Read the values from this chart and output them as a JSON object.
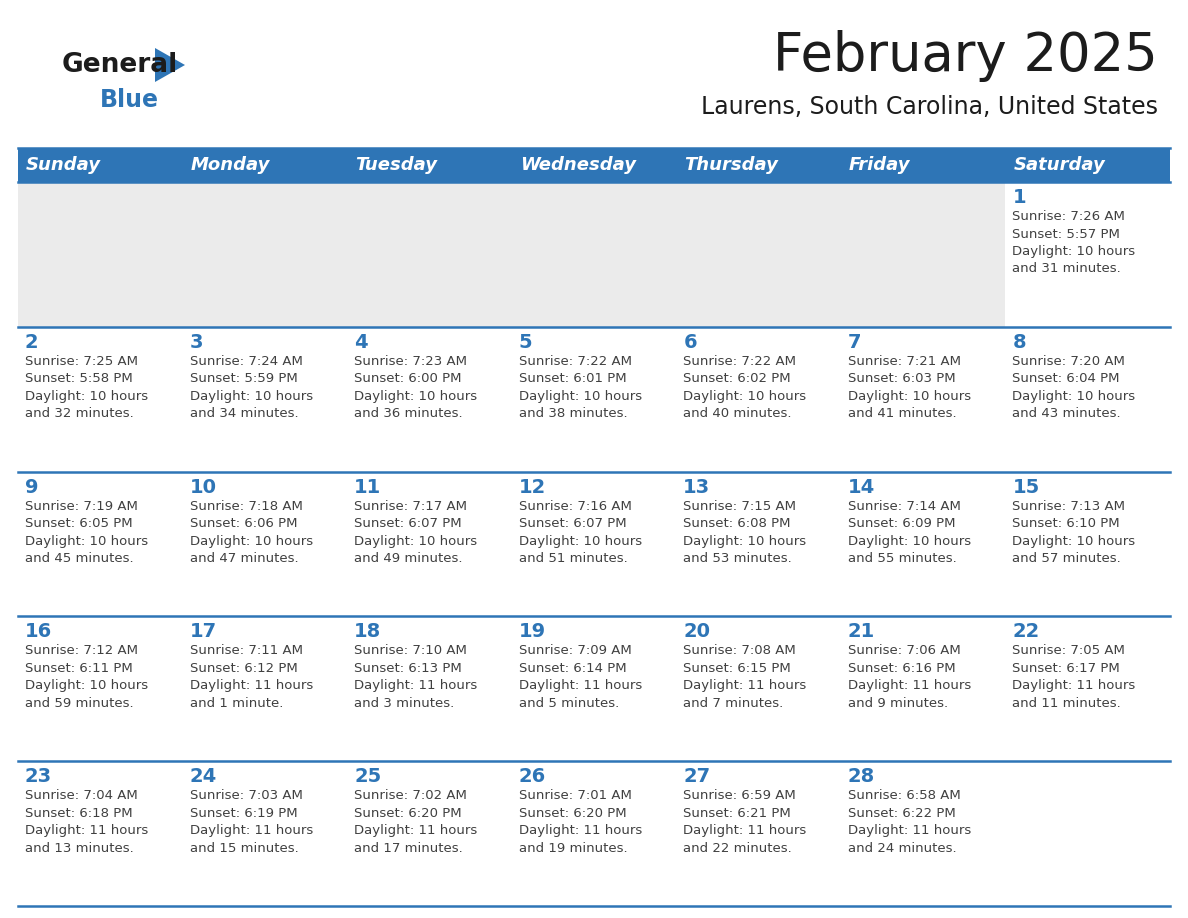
{
  "title": "February 2025",
  "subtitle": "Laurens, South Carolina, United States",
  "header_bg": "#2E75B6",
  "header_text_color": "#FFFFFF",
  "cell_bg_empty": "#EBEBEB",
  "cell_bg_filled": "#FFFFFF",
  "day_number_color": "#2E75B6",
  "text_color": "#404040",
  "border_color": "#2E75B6",
  "days_of_week": [
    "Sunday",
    "Monday",
    "Tuesday",
    "Wednesday",
    "Thursday",
    "Friday",
    "Saturday"
  ],
  "weeks": [
    [
      {
        "day": "",
        "sunrise": "",
        "sunset": "",
        "daylight": ""
      },
      {
        "day": "",
        "sunrise": "",
        "sunset": "",
        "daylight": ""
      },
      {
        "day": "",
        "sunrise": "",
        "sunset": "",
        "daylight": ""
      },
      {
        "day": "",
        "sunrise": "",
        "sunset": "",
        "daylight": ""
      },
      {
        "day": "",
        "sunrise": "",
        "sunset": "",
        "daylight": ""
      },
      {
        "day": "",
        "sunrise": "",
        "sunset": "",
        "daylight": ""
      },
      {
        "day": "1",
        "sunrise": "7:26 AM",
        "sunset": "5:57 PM",
        "daylight": "10 hours\nand 31 minutes."
      }
    ],
    [
      {
        "day": "2",
        "sunrise": "7:25 AM",
        "sunset": "5:58 PM",
        "daylight": "10 hours\nand 32 minutes."
      },
      {
        "day": "3",
        "sunrise": "7:24 AM",
        "sunset": "5:59 PM",
        "daylight": "10 hours\nand 34 minutes."
      },
      {
        "day": "4",
        "sunrise": "7:23 AM",
        "sunset": "6:00 PM",
        "daylight": "10 hours\nand 36 minutes."
      },
      {
        "day": "5",
        "sunrise": "7:22 AM",
        "sunset": "6:01 PM",
        "daylight": "10 hours\nand 38 minutes."
      },
      {
        "day": "6",
        "sunrise": "7:22 AM",
        "sunset": "6:02 PM",
        "daylight": "10 hours\nand 40 minutes."
      },
      {
        "day": "7",
        "sunrise": "7:21 AM",
        "sunset": "6:03 PM",
        "daylight": "10 hours\nand 41 minutes."
      },
      {
        "day": "8",
        "sunrise": "7:20 AM",
        "sunset": "6:04 PM",
        "daylight": "10 hours\nand 43 minutes."
      }
    ],
    [
      {
        "day": "9",
        "sunrise": "7:19 AM",
        "sunset": "6:05 PM",
        "daylight": "10 hours\nand 45 minutes."
      },
      {
        "day": "10",
        "sunrise": "7:18 AM",
        "sunset": "6:06 PM",
        "daylight": "10 hours\nand 47 minutes."
      },
      {
        "day": "11",
        "sunrise": "7:17 AM",
        "sunset": "6:07 PM",
        "daylight": "10 hours\nand 49 minutes."
      },
      {
        "day": "12",
        "sunrise": "7:16 AM",
        "sunset": "6:07 PM",
        "daylight": "10 hours\nand 51 minutes."
      },
      {
        "day": "13",
        "sunrise": "7:15 AM",
        "sunset": "6:08 PM",
        "daylight": "10 hours\nand 53 minutes."
      },
      {
        "day": "14",
        "sunrise": "7:14 AM",
        "sunset": "6:09 PM",
        "daylight": "10 hours\nand 55 minutes."
      },
      {
        "day": "15",
        "sunrise": "7:13 AM",
        "sunset": "6:10 PM",
        "daylight": "10 hours\nand 57 minutes."
      }
    ],
    [
      {
        "day": "16",
        "sunrise": "7:12 AM",
        "sunset": "6:11 PM",
        "daylight": "10 hours\nand 59 minutes."
      },
      {
        "day": "17",
        "sunrise": "7:11 AM",
        "sunset": "6:12 PM",
        "daylight": "11 hours\nand 1 minute."
      },
      {
        "day": "18",
        "sunrise": "7:10 AM",
        "sunset": "6:13 PM",
        "daylight": "11 hours\nand 3 minutes."
      },
      {
        "day": "19",
        "sunrise": "7:09 AM",
        "sunset": "6:14 PM",
        "daylight": "11 hours\nand 5 minutes."
      },
      {
        "day": "20",
        "sunrise": "7:08 AM",
        "sunset": "6:15 PM",
        "daylight": "11 hours\nand 7 minutes."
      },
      {
        "day": "21",
        "sunrise": "7:06 AM",
        "sunset": "6:16 PM",
        "daylight": "11 hours\nand 9 minutes."
      },
      {
        "day": "22",
        "sunrise": "7:05 AM",
        "sunset": "6:17 PM",
        "daylight": "11 hours\nand 11 minutes."
      }
    ],
    [
      {
        "day": "23",
        "sunrise": "7:04 AM",
        "sunset": "6:18 PM",
        "daylight": "11 hours\nand 13 minutes."
      },
      {
        "day": "24",
        "sunrise": "7:03 AM",
        "sunset": "6:19 PM",
        "daylight": "11 hours\nand 15 minutes."
      },
      {
        "day": "25",
        "sunrise": "7:02 AM",
        "sunset": "6:20 PM",
        "daylight": "11 hours\nand 17 minutes."
      },
      {
        "day": "26",
        "sunrise": "7:01 AM",
        "sunset": "6:20 PM",
        "daylight": "11 hours\nand 19 minutes."
      },
      {
        "day": "27",
        "sunrise": "6:59 AM",
        "sunset": "6:21 PM",
        "daylight": "11 hours\nand 22 minutes."
      },
      {
        "day": "28",
        "sunrise": "6:58 AM",
        "sunset": "6:22 PM",
        "daylight": "11 hours\nand 24 minutes."
      },
      {
        "day": "",
        "sunrise": "",
        "sunset": "",
        "daylight": ""
      }
    ]
  ],
  "title_fontsize": 38,
  "subtitle_fontsize": 17,
  "header_day_fontsize": 13,
  "day_number_fontsize": 14,
  "cell_text_fontsize": 9.5
}
